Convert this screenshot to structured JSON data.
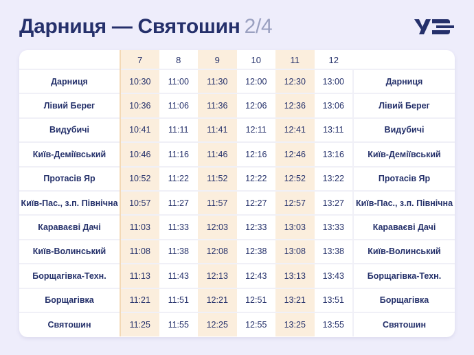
{
  "header": {
    "title": "Дарниця — Святошин",
    "page": "2/4"
  },
  "logo": {
    "name": "uz-logo",
    "text": "УЗ"
  },
  "colors": {
    "background": "#eeedfb",
    "highlight": "#fbeedd",
    "text": "#24306a",
    "brand": "#25306b"
  },
  "table": {
    "trains": [
      "7",
      "8",
      "9",
      "10",
      "11",
      "12"
    ],
    "rows": [
      {
        "station": "Дарниця",
        "times": [
          "10:30",
          "11:00",
          "11:30",
          "12:00",
          "12:30",
          "13:00"
        ]
      },
      {
        "station": "Лівий Берег",
        "times": [
          "10:36",
          "11:06",
          "11:36",
          "12:06",
          "12:36",
          "13:06"
        ]
      },
      {
        "station": "Видубичі",
        "times": [
          "10:41",
          "11:11",
          "11:41",
          "12:11",
          "12:41",
          "13:11"
        ]
      },
      {
        "station": "Київ-Деміївський",
        "times": [
          "10:46",
          "11:16",
          "11:46",
          "12:16",
          "12:46",
          "13:16"
        ]
      },
      {
        "station": "Протасів Яр",
        "times": [
          "10:52",
          "11:22",
          "11:52",
          "12:22",
          "12:52",
          "13:22"
        ]
      },
      {
        "station": "Київ-Пас., з.п. Північна",
        "times": [
          "10:57",
          "11:27",
          "11:57",
          "12:27",
          "12:57",
          "13:27"
        ]
      },
      {
        "station": "Караваєві Дачі",
        "times": [
          "11:03",
          "11:33",
          "12:03",
          "12:33",
          "13:03",
          "13:33"
        ]
      },
      {
        "station": "Київ-Волинський",
        "times": [
          "11:08",
          "11:38",
          "12:08",
          "12:38",
          "13:08",
          "13:38"
        ]
      },
      {
        "station": "Борщагівка-Техн.",
        "times": [
          "11:13",
          "11:43",
          "12:13",
          "12:43",
          "13:13",
          "13:43"
        ]
      },
      {
        "station": "Борщагівка",
        "times": [
          "11:21",
          "11:51",
          "12:21",
          "12:51",
          "13:21",
          "13:51"
        ]
      },
      {
        "station": "Святошин",
        "times": [
          "11:25",
          "11:55",
          "12:25",
          "12:55",
          "13:25",
          "13:55"
        ]
      }
    ]
  }
}
